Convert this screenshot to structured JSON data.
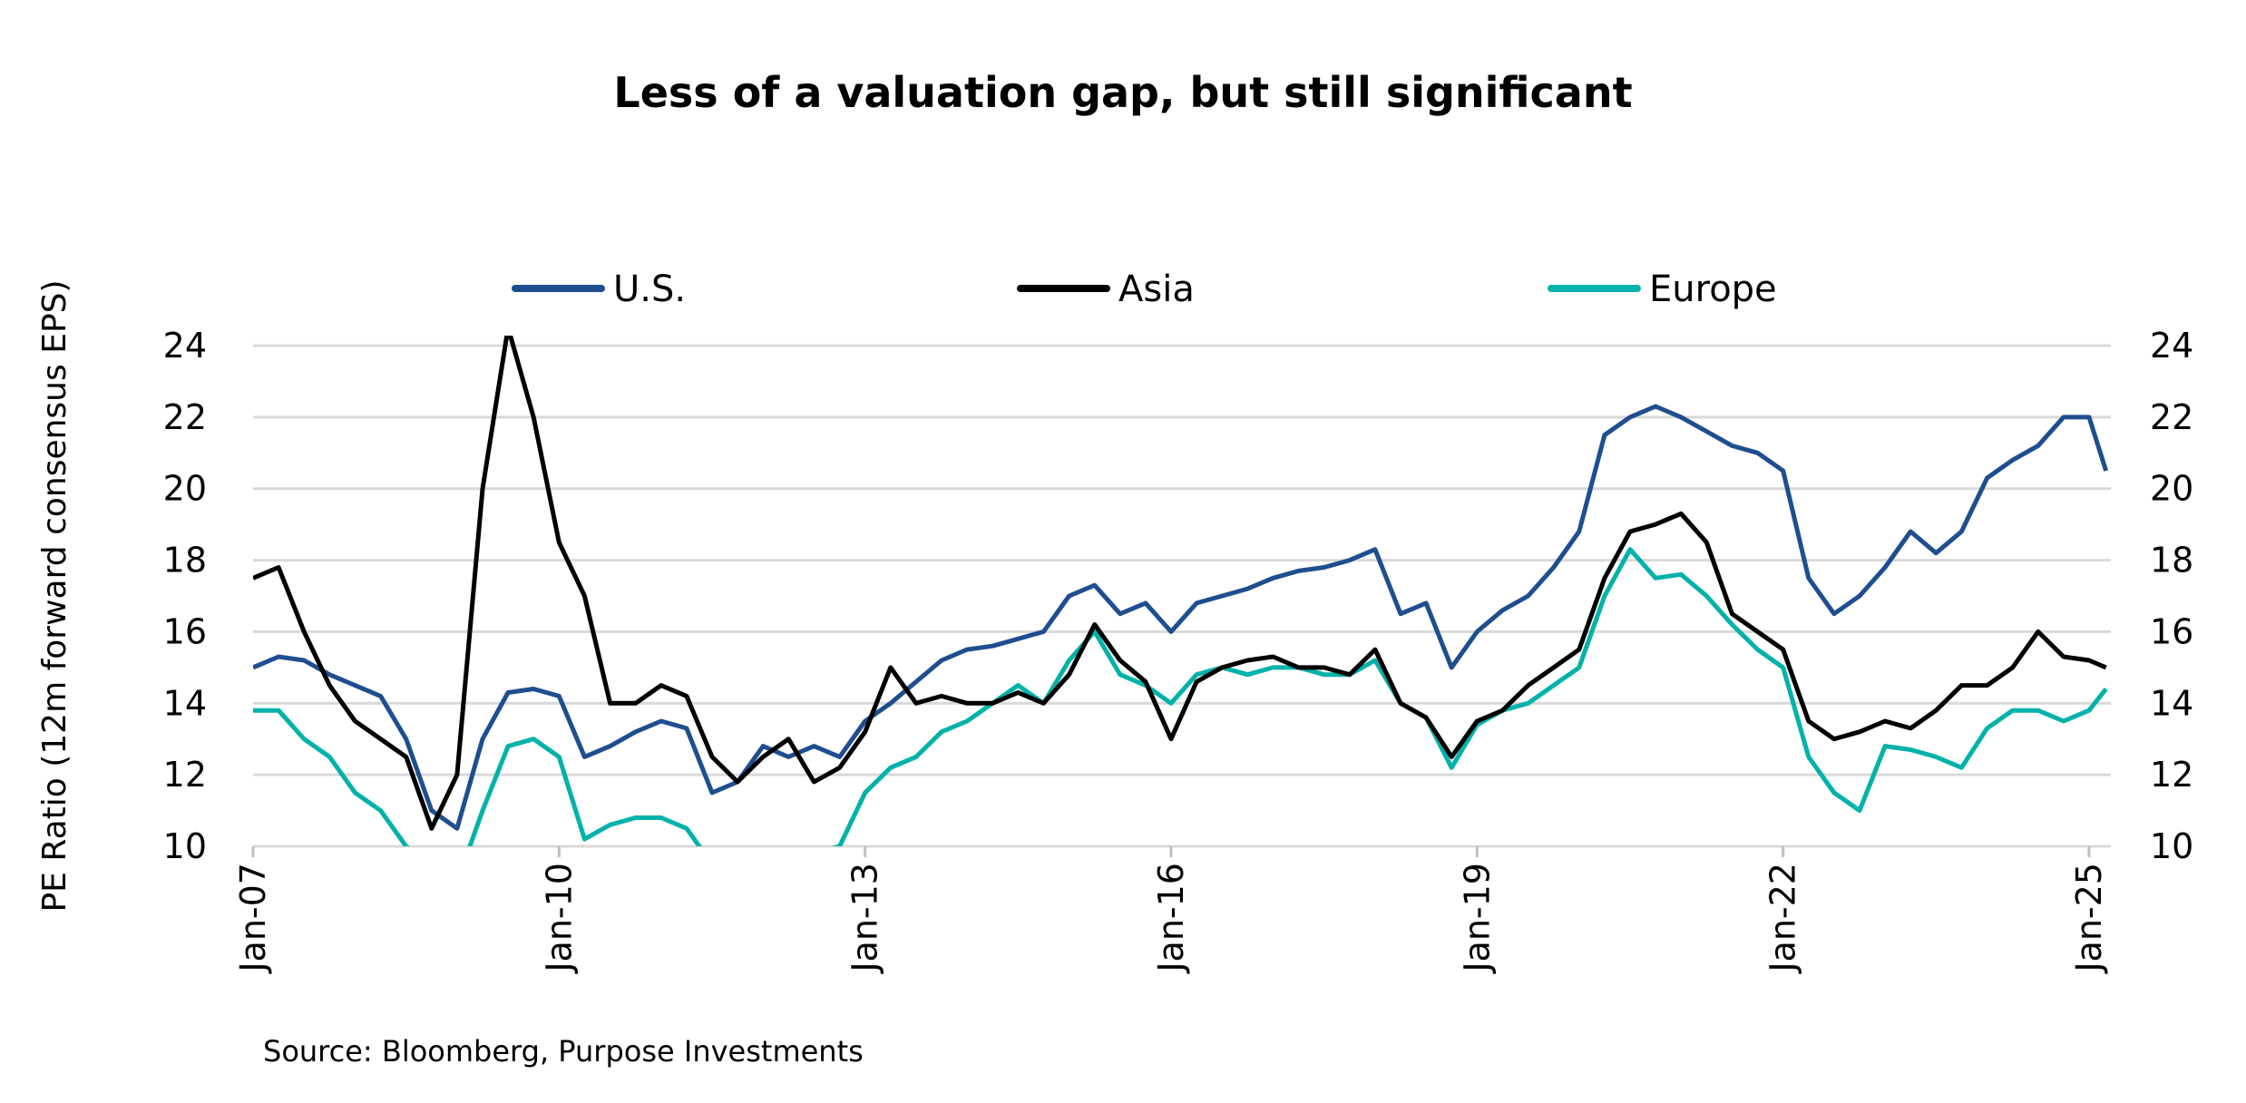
{
  "chart_data": {
    "type": "line",
    "title": "Less of a valuation gap, but still significant",
    "ylabel": "PE Ratio  (12m forward consensus EPS)",
    "ylim": [
      10,
      24
    ],
    "yticks": [
      "10",
      "12",
      "14",
      "16",
      "18",
      "20",
      "22",
      "24"
    ],
    "y_axis_right": true,
    "xticks": [
      {
        "label": "Jan-07",
        "date": "2007-01"
      },
      {
        "label": "Jan-10",
        "date": "2010-01"
      },
      {
        "label": "Jan-13",
        "date": "2013-01"
      },
      {
        "label": "Jan-16",
        "date": "2016-01"
      },
      {
        "label": "Jan-19",
        "date": "2019-01"
      },
      {
        "label": "Jan-22",
        "date": "2022-01"
      },
      {
        "label": "Jan-25",
        "date": "2025-01"
      }
    ],
    "xlim": [
      "2007-01",
      "2025-03"
    ],
    "grid": "horizontal",
    "legend": "top",
    "source": "Source: Bloomberg, Purpose Investments",
    "x": [
      "2007-01",
      "2007-04",
      "2007-07",
      "2007-10",
      "2008-01",
      "2008-04",
      "2008-07",
      "2008-10",
      "2009-01",
      "2009-04",
      "2009-07",
      "2009-10",
      "2010-01",
      "2010-04",
      "2010-07",
      "2010-10",
      "2011-01",
      "2011-04",
      "2011-07",
      "2011-10",
      "2012-01",
      "2012-04",
      "2012-07",
      "2012-10",
      "2013-01",
      "2013-04",
      "2013-07",
      "2013-10",
      "2014-01",
      "2014-04",
      "2014-07",
      "2014-10",
      "2015-01",
      "2015-04",
      "2015-07",
      "2015-10",
      "2016-01",
      "2016-04",
      "2016-07",
      "2016-10",
      "2017-01",
      "2017-04",
      "2017-07",
      "2017-10",
      "2018-01",
      "2018-04",
      "2018-07",
      "2018-10",
      "2019-01",
      "2019-04",
      "2019-07",
      "2019-10",
      "2020-01",
      "2020-04",
      "2020-07",
      "2020-10",
      "2021-01",
      "2021-04",
      "2021-07",
      "2021-10",
      "2022-01",
      "2022-04",
      "2022-07",
      "2022-10",
      "2023-01",
      "2023-04",
      "2023-07",
      "2023-10",
      "2024-01",
      "2024-04",
      "2024-07",
      "2024-10",
      "2025-01",
      "2025-03"
    ],
    "series": [
      {
        "name": "U.S.",
        "color": "#1f4e8f",
        "values": [
          15.0,
          15.3,
          15.2,
          14.8,
          14.5,
          14.2,
          13.0,
          11.0,
          10.5,
          13.0,
          14.3,
          14.4,
          14.2,
          12.5,
          12.8,
          13.2,
          13.5,
          13.3,
          11.5,
          11.8,
          12.8,
          12.5,
          12.8,
          12.5,
          13.5,
          14.0,
          14.6,
          15.2,
          15.5,
          15.6,
          15.8,
          16.0,
          17.0,
          17.3,
          16.5,
          16.8,
          16.0,
          16.8,
          17.0,
          17.2,
          17.5,
          17.7,
          17.8,
          18.0,
          18.3,
          16.5,
          16.8,
          15.0,
          16.0,
          16.6,
          17.0,
          17.8,
          18.8,
          21.5,
          22.0,
          22.3,
          22.0,
          21.6,
          21.2,
          21.0,
          20.5,
          17.5,
          16.5,
          17.0,
          17.8,
          18.8,
          18.2,
          18.8,
          20.3,
          20.8,
          21.2,
          22.0,
          22.0,
          20.5
        ]
      },
      {
        "name": "Asia",
        "color": "#000000",
        "values": [
          17.5,
          17.8,
          16.0,
          14.5,
          13.5,
          13.0,
          12.5,
          10.5,
          12.0,
          20.0,
          24.5,
          22.0,
          18.5,
          17.0,
          14.0,
          14.0,
          14.5,
          14.2,
          12.5,
          11.8,
          12.5,
          13.0,
          11.8,
          12.2,
          13.2,
          15.0,
          14.0,
          14.2,
          14.0,
          14.0,
          14.3,
          14.0,
          14.8,
          16.2,
          15.2,
          14.6,
          13.0,
          14.6,
          15.0,
          15.2,
          15.3,
          15.0,
          15.0,
          14.8,
          15.5,
          14.0,
          13.6,
          12.5,
          13.5,
          13.8,
          14.5,
          15.0,
          15.5,
          17.5,
          18.8,
          19.0,
          19.3,
          18.5,
          16.5,
          16.0,
          15.5,
          13.5,
          13.0,
          13.2,
          13.5,
          13.3,
          13.8,
          14.5,
          14.5,
          15.0,
          16.0,
          15.3,
          15.2,
          15.0
        ]
      },
      {
        "name": "Europe",
        "color": "#00b2a9",
        "values": [
          13.8,
          13.8,
          13.0,
          12.5,
          11.5,
          11.0,
          10.0,
          9.5,
          9.0,
          11.0,
          12.8,
          13.0,
          12.5,
          10.2,
          10.6,
          10.8,
          10.8,
          10.5,
          9.5,
          9.3,
          9.6,
          9.5,
          9.8,
          10.0,
          11.5,
          12.2,
          12.5,
          13.2,
          13.5,
          14.0,
          14.5,
          14.0,
          15.2,
          16.0,
          14.8,
          14.5,
          14.0,
          14.8,
          15.0,
          14.8,
          15.0,
          15.0,
          14.8,
          14.8,
          15.2,
          14.0,
          13.6,
          12.2,
          13.4,
          13.8,
          14.0,
          14.5,
          15.0,
          17.0,
          18.3,
          17.5,
          17.6,
          17.0,
          16.2,
          15.5,
          15.0,
          12.5,
          11.5,
          11.0,
          12.8,
          12.7,
          12.5,
          12.2,
          13.3,
          13.8,
          13.8,
          13.5,
          13.8,
          14.4
        ]
      }
    ]
  }
}
